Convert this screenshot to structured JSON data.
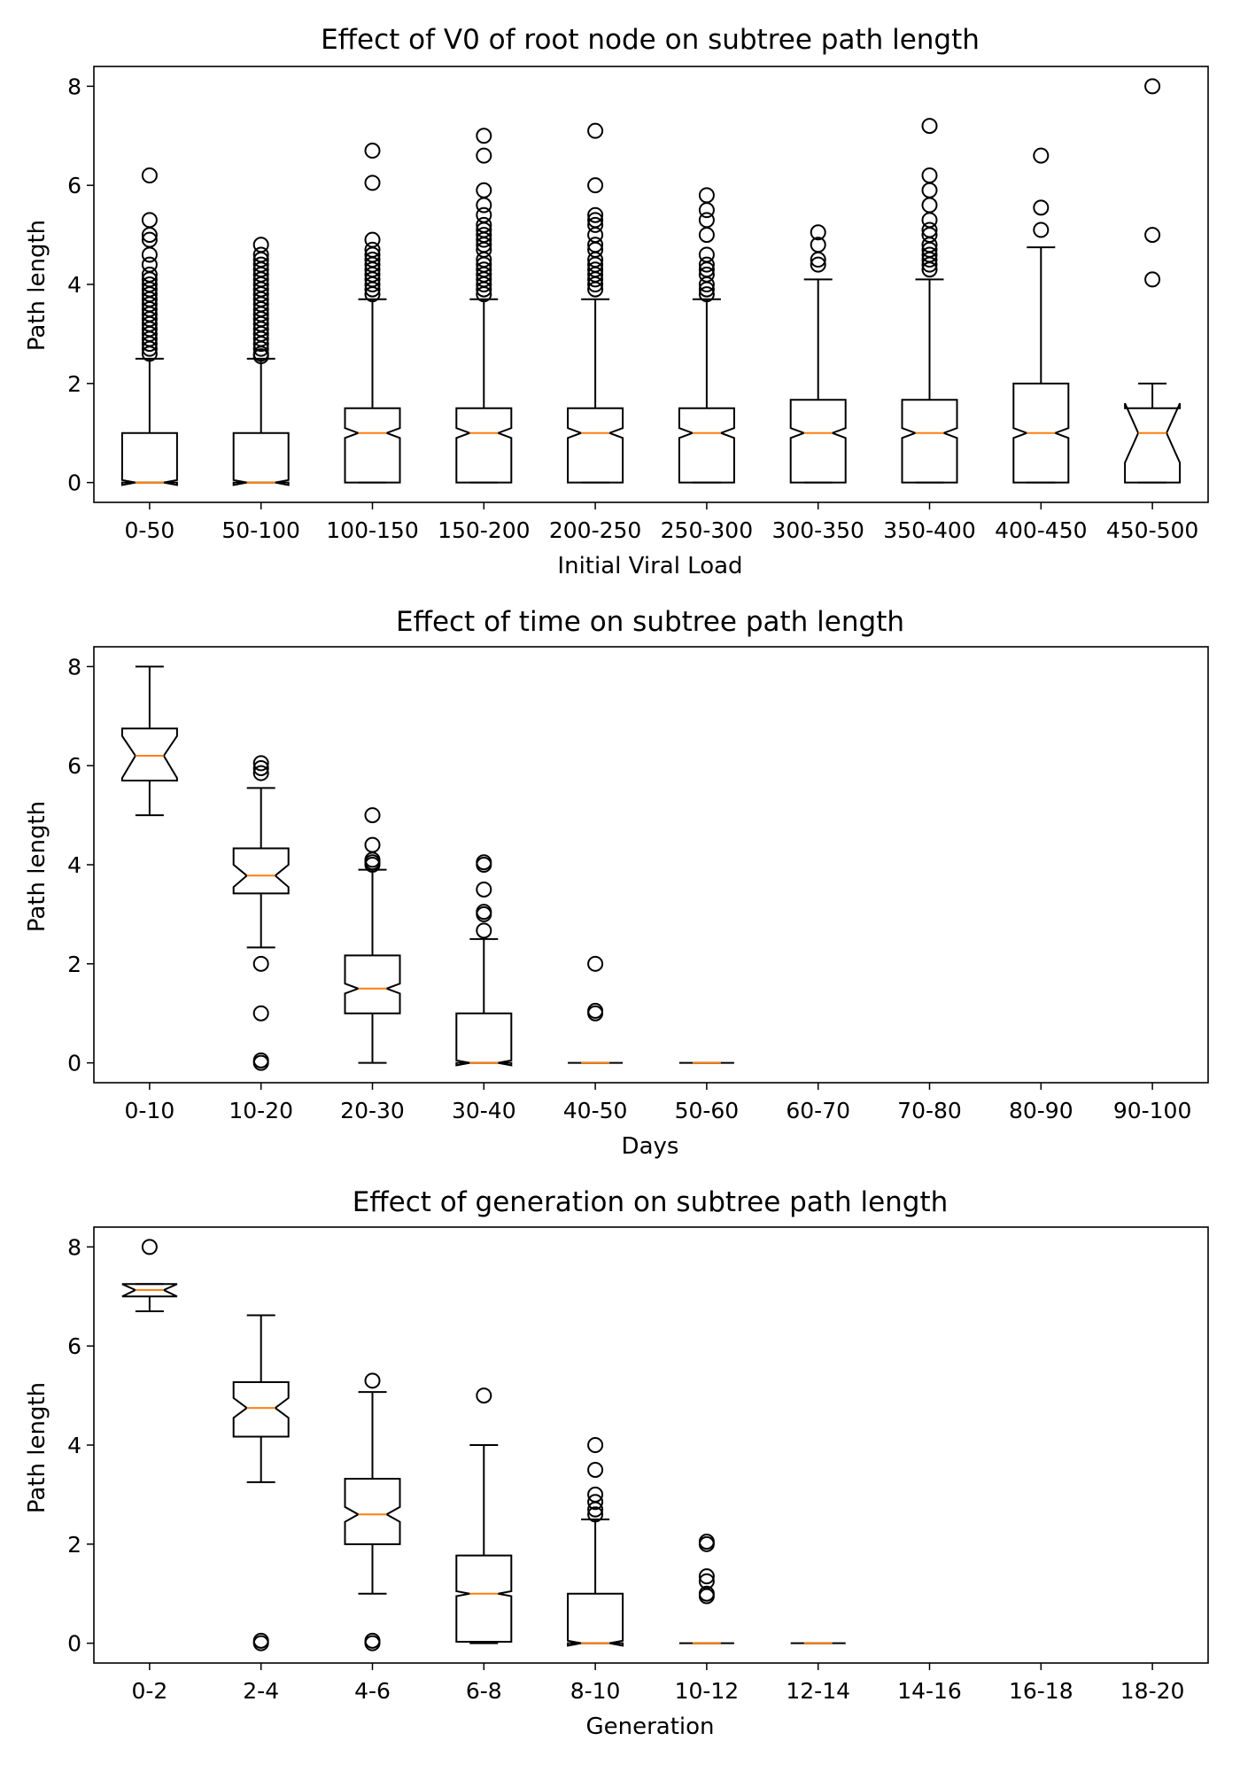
{
  "chart_data": [
    {
      "type": "boxplot",
      "title": "Effect of V0 of root node on subtree path length",
      "xlabel": "Initial Viral Load",
      "ylabel": "Path length",
      "ylim": [
        -0.4,
        8.4
      ],
      "yticks": [
        0,
        2,
        4,
        6,
        8
      ],
      "notched": true,
      "categories": [
        "0-50",
        "50-100",
        "100-150",
        "150-200",
        "200-250",
        "250-300",
        "300-350",
        "350-400",
        "400-450",
        "450-500"
      ],
      "boxes": [
        {
          "whislo": 0,
          "q1": 0,
          "med": 0,
          "q3": 1.0,
          "whishi": 2.5,
          "ci": [
            -0.05,
            0.05
          ],
          "fliers": [
            2.6,
            2.7,
            2.8,
            2.9,
            3.0,
            3.1,
            3.2,
            3.3,
            3.4,
            3.5,
            3.6,
            3.7,
            3.8,
            3.9,
            4.0,
            4.1,
            4.2,
            4.4,
            4.6,
            4.9,
            5.0,
            5.3,
            6.2
          ]
        },
        {
          "whislo": 0,
          "q1": 0,
          "med": 0,
          "q3": 1.0,
          "whishi": 2.5,
          "ci": [
            -0.05,
            0.05
          ],
          "fliers": [
            2.55,
            2.6,
            2.7,
            2.8,
            2.9,
            3.0,
            3.1,
            3.2,
            3.3,
            3.4,
            3.5,
            3.6,
            3.7,
            3.8,
            3.9,
            4.0,
            4.1,
            4.2,
            4.3,
            4.4,
            4.5,
            4.6,
            4.8
          ]
        },
        {
          "whislo": 0,
          "q1": 0,
          "med": 1.0,
          "q3": 1.5,
          "whishi": 3.7,
          "ci": [
            0.9,
            1.1
          ],
          "fliers": [
            3.8,
            3.9,
            4.0,
            4.1,
            4.2,
            4.3,
            4.4,
            4.5,
            4.6,
            4.7,
            4.9,
            6.05,
            6.7
          ]
        },
        {
          "whislo": 0,
          "q1": 0,
          "med": 1.0,
          "q3": 1.5,
          "whishi": 3.7,
          "ci": [
            0.9,
            1.1
          ],
          "fliers": [
            3.8,
            3.9,
            4.0,
            4.1,
            4.2,
            4.3,
            4.4,
            4.5,
            4.7,
            4.8,
            4.9,
            5.0,
            5.1,
            5.2,
            5.4,
            5.6,
            5.9,
            6.6,
            7.0
          ]
        },
        {
          "whislo": 0,
          "q1": 0,
          "med": 1.0,
          "q3": 1.5,
          "whishi": 3.7,
          "ci": [
            0.9,
            1.1
          ],
          "fliers": [
            3.9,
            4.0,
            4.1,
            4.2,
            4.3,
            4.4,
            4.5,
            4.7,
            4.8,
            5.0,
            5.2,
            5.3,
            5.4,
            6.0,
            7.1
          ]
        },
        {
          "whislo": 0,
          "q1": 0,
          "med": 1.0,
          "q3": 1.5,
          "whishi": 3.7,
          "ci": [
            0.9,
            1.1
          ],
          "fliers": [
            3.8,
            3.9,
            4.0,
            4.2,
            4.3,
            4.4,
            4.6,
            5.0,
            5.3,
            5.5,
            5.8
          ]
        },
        {
          "whislo": 0,
          "q1": 0,
          "med": 1.0,
          "q3": 1.67,
          "whishi": 4.1,
          "ci": [
            0.9,
            1.1
          ],
          "fliers": [
            4.4,
            4.5,
            4.8,
            5.05
          ]
        },
        {
          "whislo": 0,
          "q1": 0,
          "med": 1.0,
          "q3": 1.67,
          "whishi": 4.1,
          "ci": [
            0.9,
            1.1
          ],
          "fliers": [
            4.3,
            4.4,
            4.5,
            4.6,
            4.7,
            4.8,
            5.0,
            5.1,
            5.3,
            5.6,
            5.9,
            6.2,
            7.2
          ]
        },
        {
          "whislo": 0,
          "q1": 0,
          "med": 1.0,
          "q3": 2.0,
          "whishi": 4.75,
          "ci": [
            0.9,
            1.1
          ],
          "fliers": [
            5.1,
            5.55,
            6.6
          ]
        },
        {
          "whislo": 0,
          "q1": 0,
          "med": 1.0,
          "q3": 1.5,
          "whishi": 2.0,
          "ci": [
            0.4,
            1.6
          ],
          "fliers": [
            4.1,
            5.0,
            8.0
          ]
        }
      ]
    },
    {
      "type": "boxplot",
      "title": "Effect of time on subtree path length",
      "xlabel": "Days",
      "ylabel": "Path length",
      "ylim": [
        -0.4,
        8.4
      ],
      "yticks": [
        0,
        2,
        4,
        6,
        8
      ],
      "notched": true,
      "categories": [
        "0-10",
        "10-20",
        "20-30",
        "30-40",
        "40-50",
        "50-60",
        "60-70",
        "70-80",
        "80-90",
        "90-100"
      ],
      "boxes": [
        {
          "whislo": 5.0,
          "q1": 5.7,
          "med": 6.2,
          "q3": 6.75,
          "whishi": 8.0,
          "ci": [
            5.75,
            6.6
          ],
          "fliers": []
        },
        {
          "whislo": 2.33,
          "q1": 3.42,
          "med": 3.78,
          "q3": 4.33,
          "whishi": 5.55,
          "ci": [
            3.55,
            4.0
          ],
          "fliers": [
            0,
            0.05,
            1.0,
            2.0,
            5.85,
            5.95,
            6.05
          ]
        },
        {
          "whislo": 0,
          "q1": 1.0,
          "med": 1.5,
          "q3": 2.17,
          "whishi": 3.9,
          "ci": [
            1.4,
            1.6
          ],
          "fliers": [
            4.0,
            4.05,
            4.1,
            4.4,
            5.0
          ]
        },
        {
          "whislo": 0,
          "q1": 0,
          "med": 0,
          "q3": 1.0,
          "whishi": 2.5,
          "ci": [
            -0.05,
            0.05
          ],
          "fliers": [
            2.67,
            3.0,
            3.05,
            3.5,
            4.0,
            4.05
          ]
        },
        {
          "whislo": 0,
          "q1": 0,
          "med": 0,
          "q3": 0,
          "whishi": 0,
          "ci": [
            0,
            0
          ],
          "fliers": [
            1.0,
            1.05,
            2.0
          ]
        },
        {
          "whislo": 0,
          "q1": 0,
          "med": 0,
          "q3": 0,
          "whishi": 0,
          "ci": [
            0,
            0
          ],
          "fliers": []
        },
        null,
        null,
        null,
        null
      ]
    },
    {
      "type": "boxplot",
      "title": "Effect of generation on subtree path length",
      "xlabel": "Generation",
      "ylabel": "Path length",
      "ylim": [
        -0.4,
        8.4
      ],
      "yticks": [
        0,
        2,
        4,
        6,
        8
      ],
      "notched": true,
      "categories": [
        "0-2",
        "2-4",
        "4-6",
        "6-8",
        "8-10",
        "10-12",
        "12-14",
        "14-16",
        "16-18",
        "18-20"
      ],
      "boxes": [
        {
          "whislo": 6.7,
          "q1": 7.0,
          "med": 7.13,
          "q3": 7.25,
          "whishi": 7.25,
          "ci": [
            7.0,
            7.25
          ],
          "fliers": [
            8.0
          ]
        },
        {
          "whislo": 3.25,
          "q1": 4.17,
          "med": 4.75,
          "q3": 5.27,
          "whishi": 6.62,
          "ci": [
            4.55,
            4.95
          ],
          "fliers": [
            0,
            0.05
          ]
        },
        {
          "whislo": 1.0,
          "q1": 2.0,
          "med": 2.6,
          "q3": 3.32,
          "whishi": 5.07,
          "ci": [
            2.45,
            2.75
          ],
          "fliers": [
            0,
            0.05,
            5.3
          ]
        },
        {
          "whislo": 0,
          "q1": 0.03,
          "med": 1.0,
          "q3": 1.77,
          "whishi": 4.0,
          "ci": [
            0.95,
            1.05
          ],
          "fliers": [
            5.0
          ]
        },
        {
          "whislo": 0,
          "q1": 0,
          "med": 0,
          "q3": 1.0,
          "whishi": 2.5,
          "ci": [
            -0.05,
            0.05
          ],
          "fliers": [
            2.6,
            2.7,
            2.85,
            3.0,
            3.5,
            4.0
          ]
        },
        {
          "whislo": 0,
          "q1": 0,
          "med": 0,
          "q3": 0,
          "whishi": 0,
          "ci": [
            0,
            0
          ],
          "fliers": [
            0.95,
            1.0,
            1.25,
            1.35,
            2.0,
            2.05
          ]
        },
        {
          "whislo": 0,
          "q1": 0,
          "med": 0,
          "q3": 0,
          "whishi": 0,
          "ci": [
            0,
            0
          ],
          "fliers": []
        },
        null,
        null,
        null
      ]
    }
  ]
}
